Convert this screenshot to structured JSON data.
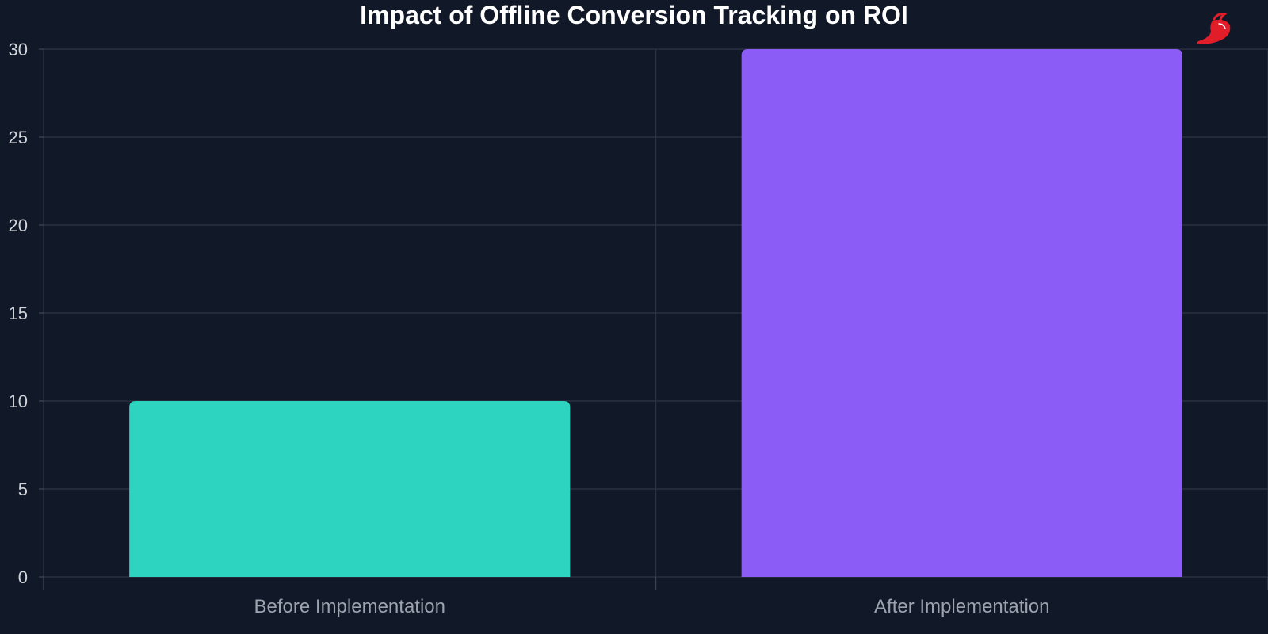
{
  "chart_data": {
    "type": "bar",
    "title": "Impact of Offline Conversion Tracking on ROI",
    "xlabel": "",
    "ylabel": "",
    "categories": [
      "Before Implementation",
      "After Implementation"
    ],
    "values": [
      10,
      30
    ],
    "colors": [
      "#2dd4bf",
      "#8b5cf6"
    ],
    "ylim": [
      0,
      30
    ],
    "yticks": [
      0,
      5,
      10,
      15,
      20,
      25,
      30
    ],
    "grid": true,
    "legend": "none"
  },
  "theme": {
    "background": "#111827",
    "grid_color": "#2b3140",
    "title_color": "#ffffff",
    "tick_color": "#d1d5db",
    "category_color": "#9ca3af",
    "logo_color": "#e11d2a"
  },
  "logo": {
    "icon": "chili-pepper-icon"
  }
}
